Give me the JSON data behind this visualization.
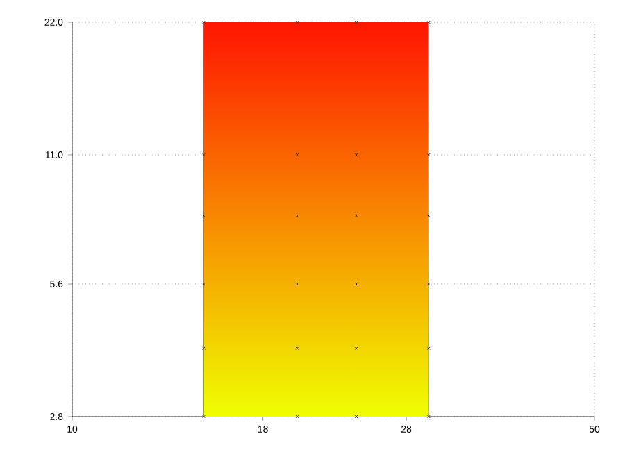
{
  "chart_data": {
    "type": "scatter",
    "log": "xy",
    "grid": true,
    "marker": "cross",
    "xlim": [
      10,
      50
    ],
    "ylim": [
      2.8,
      22
    ],
    "xticks": [
      10,
      18,
      28,
      50
    ],
    "yticks": [
      2.8,
      5.6,
      {
        "value": 11,
        "label": "11.0"
      },
      {
        "value": 22,
        "label": "22.0"
      }
    ],
    "bands": [
      {
        "axis": "x",
        "from": 15,
        "to": 30,
        "color": "#ff1500"
      }
    ],
    "series": [
      {
        "color": "#333333",
        "x": [
          15,
          15,
          15,
          15,
          15,
          15,
          20,
          20,
          20,
          20,
          20,
          20,
          24,
          24,
          24,
          24,
          24,
          24,
          30,
          30,
          30,
          30,
          30,
          30
        ],
        "values": [
          2.8,
          4,
          5.6,
          8,
          11,
          22,
          2.8,
          4,
          5.6,
          8,
          11,
          22,
          2.8,
          4,
          5.6,
          8,
          11,
          22,
          2.8,
          4,
          5.6,
          8,
          11,
          22
        ]
      }
    ]
  }
}
